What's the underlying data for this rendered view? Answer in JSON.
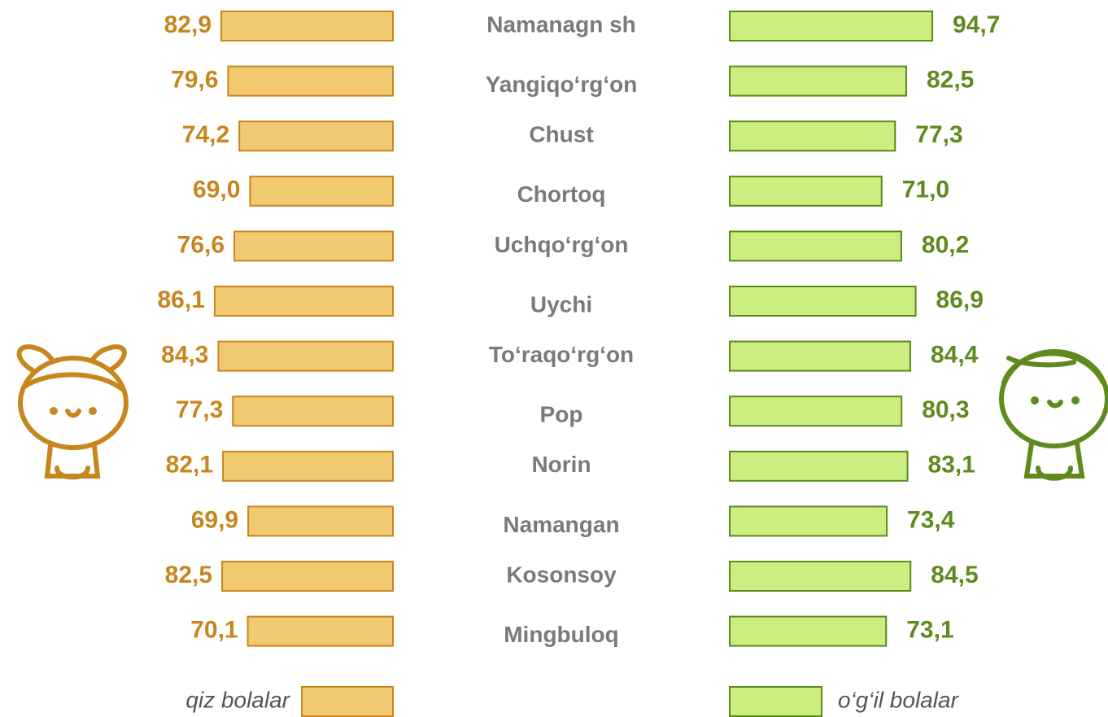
{
  "chart_data": {
    "type": "butterfly",
    "categories": [
      "Namanagn sh",
      "Yangiqo‘rg‘on",
      "Chust",
      "Chortoq",
      "Uchqo‘rg‘on",
      "Uychi",
      "To‘raqo‘rg‘on",
      "Pop",
      "Norin",
      "Namangan",
      "Kosonsoy",
      "Mingbuloq"
    ],
    "series": [
      {
        "name": "qiz bolalar",
        "color": "#f0c970",
        "side": "left",
        "values": [
          82.9,
          79.6,
          74.2,
          69.0,
          76.6,
          86.1,
          84.3,
          77.3,
          82.1,
          69.9,
          82.5,
          70.1
        ],
        "value_labels": [
          "82,9",
          "79,6",
          "74,2",
          "69,0",
          "76,6",
          "86,1",
          "84,3",
          "77,3",
          "82,1",
          "69,9",
          "82,5",
          "70,1"
        ]
      },
      {
        "name": "o‘g‘il bolalar",
        "color": "#ccee80",
        "side": "right",
        "values": [
          94.7,
          82.5,
          77.3,
          71.0,
          80.2,
          86.9,
          84.4,
          80.3,
          83.1,
          73.4,
          84.5,
          73.1
        ],
        "value_labels": [
          "94,7",
          "82,5",
          "77,3",
          "71,0",
          "80,2",
          "86,9",
          "84,4",
          "80,3",
          "83,1",
          "73,4",
          "84,5",
          "73,1"
        ]
      }
    ]
  }
}
